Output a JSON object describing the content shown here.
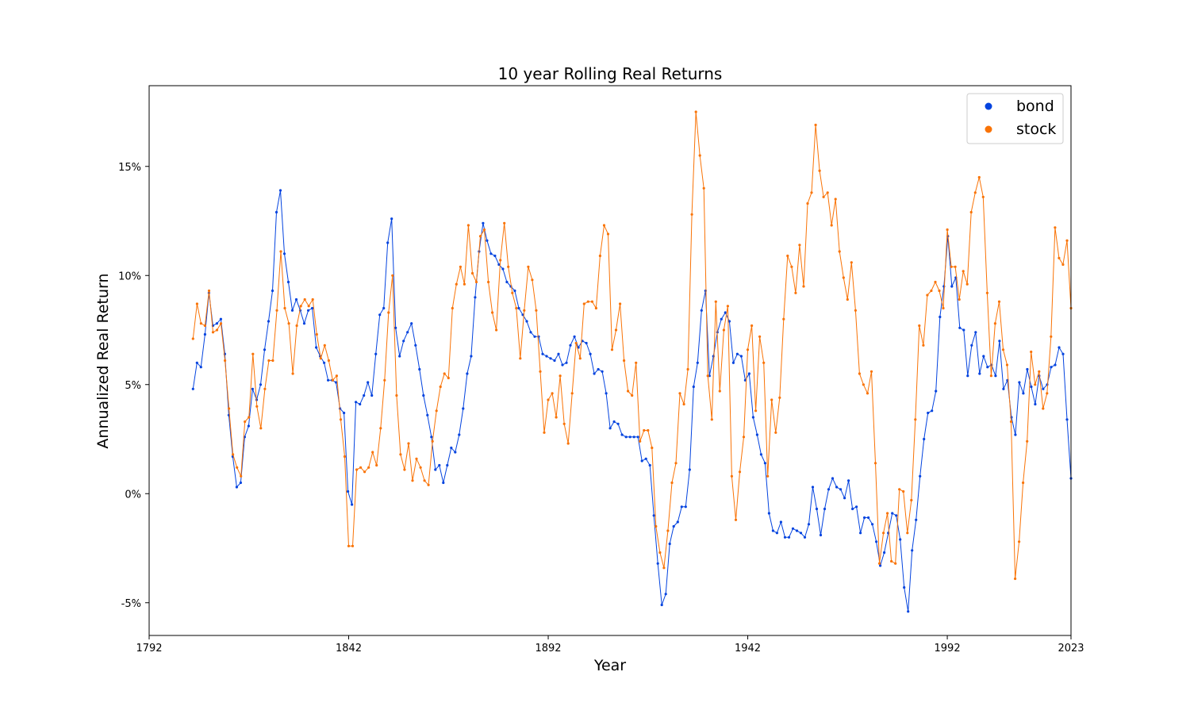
{
  "chart_data": {
    "type": "line",
    "title": "10 year Rolling Real Returns",
    "xlabel": "Year",
    "ylabel": "Annualized Real Return",
    "xlim": [
      1792,
      2023
    ],
    "ylim": [
      -6.5,
      18.7
    ],
    "xticks": [
      1792,
      1842,
      1892,
      1942,
      1992,
      2023
    ],
    "yticks": [
      -5,
      0,
      5,
      10,
      15
    ],
    "ytick_labels": [
      "-5%",
      "0%",
      "5%",
      "10%",
      "15%"
    ],
    "legend": {
      "position": "top-right"
    },
    "grid": false,
    "x_start": 1803,
    "series": [
      {
        "name": "bond",
        "color": "#0343df",
        "values": [
          4.8,
          6.0,
          5.8,
          7.3,
          9.2,
          7.7,
          7.8,
          8.0,
          6.4,
          3.6,
          1.7,
          0.3,
          0.5,
          2.6,
          3.1,
          4.8,
          4.3,
          5.0,
          6.6,
          7.9,
          9.3,
          12.9,
          13.9,
          11.0,
          9.7,
          8.4,
          8.9,
          8.4,
          7.8,
          8.4,
          8.5,
          6.7,
          6.3,
          6.0,
          5.2,
          5.2,
          5.1,
          3.9,
          3.7,
          0.1,
          -0.5,
          4.2,
          4.1,
          4.5,
          5.1,
          4.5,
          6.4,
          8.2,
          8.5,
          11.5,
          12.6,
          7.6,
          6.3,
          7.0,
          7.4,
          7.8,
          6.8,
          5.7,
          4.5,
          3.6,
          2.6,
          1.1,
          1.3,
          0.5,
          1.3,
          2.1,
          1.9,
          2.7,
          3.9,
          5.5,
          6.3,
          9.0,
          11.1,
          12.4,
          11.6,
          11.0,
          10.9,
          10.5,
          10.3,
          9.7,
          9.5,
          9.3,
          8.5,
          8.2,
          7.9,
          7.4,
          7.2,
          7.2,
          6.4,
          6.3,
          6.2,
          6.1,
          6.4,
          5.9,
          6.0,
          6.8,
          7.2,
          6.7,
          7.0,
          6.9,
          6.4,
          5.5,
          5.7,
          5.6,
          4.6,
          3.0,
          3.3,
          3.2,
          2.7,
          2.6,
          2.6,
          2.6,
          2.6,
          1.5,
          1.6,
          1.3,
          -1.0,
          -3.2,
          -5.1,
          -4.6,
          -2.3,
          -1.5,
          -1.3,
          -0.6,
          -0.6,
          1.1,
          4.9,
          6.0,
          8.4,
          9.3,
          5.4,
          6.3,
          7.4,
          8.0,
          8.3,
          7.9,
          6.0,
          6.4,
          6.3,
          5.2,
          5.5,
          3.5,
          2.7,
          1.8,
          1.4,
          -0.9,
          -1.7,
          -1.8,
          -1.3,
          -2.0,
          -2.0,
          -1.6,
          -1.7,
          -1.8,
          -2.0,
          -1.4,
          0.3,
          -0.7,
          -1.9,
          -0.7,
          0.2,
          0.7,
          0.3,
          0.2,
          -0.2,
          0.6,
          -0.7,
          -0.6,
          -1.8,
          -1.1,
          -1.1,
          -1.4,
          -2.2,
          -3.3,
          -2.7,
          -1.8,
          -0.9,
          -1.0,
          -2.1,
          -4.3,
          -5.4,
          -2.6,
          -1.2,
          0.8,
          2.5,
          3.7,
          3.8,
          4.7,
          8.1,
          9.5,
          11.8,
          9.5,
          9.9,
          7.6,
          7.5,
          5.4,
          6.8,
          7.4,
          5.5,
          6.3,
          5.8,
          5.9,
          5.4,
          7.0,
          4.8,
          5.2,
          3.5,
          2.7,
          5.1,
          4.6,
          5.7,
          4.9,
          4.1,
          5.4,
          4.8,
          5.0,
          5.8,
          5.9,
          6.7,
          6.4,
          3.4,
          0.7
        ]
      },
      {
        "name": "stock",
        "color": "#f97306",
        "values": [
          7.1,
          8.7,
          7.8,
          7.7,
          9.3,
          7.4,
          7.5,
          7.8,
          6.1,
          3.9,
          1.8,
          1.2,
          0.8,
          3.3,
          3.5,
          6.4,
          4.0,
          3.0,
          4.8,
          6.1,
          6.1,
          8.4,
          11.1,
          8.5,
          7.8,
          5.5,
          7.7,
          8.6,
          8.9,
          8.6,
          8.9,
          7.3,
          6.2,
          6.8,
          6.1,
          5.2,
          5.4,
          3.4,
          1.7,
          -2.4,
          -2.4,
          1.1,
          1.2,
          1.0,
          1.2,
          1.9,
          1.3,
          3.0,
          5.2,
          8.3,
          10.0,
          4.5,
          1.8,
          1.1,
          2.3,
          0.6,
          1.6,
          1.2,
          0.6,
          0.4,
          2.4,
          3.8,
          4.9,
          5.5,
          5.3,
          8.5,
          9.6,
          10.4,
          9.6,
          12.3,
          10.1,
          9.7,
          11.8,
          12.1,
          9.7,
          8.3,
          7.5,
          10.7,
          12.4,
          10.4,
          9.2,
          8.5,
          6.2,
          8.4,
          10.4,
          9.8,
          8.4,
          5.6,
          2.8,
          4.3,
          4.6,
          3.5,
          5.4,
          3.2,
          2.3,
          4.6,
          6.9,
          6.2,
          8.7,
          8.8,
          8.8,
          8.5,
          10.9,
          12.3,
          11.9,
          6.6,
          7.5,
          8.7,
          6.1,
          4.7,
          4.5,
          6.0,
          2.4,
          2.9,
          2.9,
          2.1,
          -1.5,
          -2.7,
          -3.4,
          -1.7,
          0.5,
          1.4,
          4.6,
          4.1,
          5.7,
          12.8,
          17.5,
          15.5,
          14.0,
          5.4,
          3.4,
          8.8,
          4.7,
          7.5,
          8.6,
          0.8,
          -1.2,
          1.0,
          2.6,
          6.6,
          7.7,
          3.8,
          7.2,
          6.0,
          0.8,
          4.3,
          2.8,
          4.4,
          8.0,
          10.9,
          10.4,
          9.2,
          11.4,
          9.5,
          13.3,
          13.8,
          16.9,
          14.8,
          13.6,
          13.8,
          12.3,
          13.5,
          11.1,
          9.9,
          8.9,
          10.6,
          8.4,
          5.5,
          5.0,
          4.6,
          5.6,
          1.4,
          -3.2,
          -1.8,
          -0.9,
          -3.1,
          -3.2,
          0.2,
          0.1,
          -1.8,
          -0.3,
          3.4,
          7.7,
          6.8,
          9.1,
          9.3,
          9.7,
          9.3,
          8.5,
          12.1,
          10.4,
          10.4,
          8.9,
          10.2,
          9.6,
          12.9,
          13.8,
          14.5,
          13.6,
          9.2,
          5.4,
          7.8,
          8.8,
          6.6,
          5.9,
          3.3,
          -3.9,
          -2.2,
          0.5,
          2.4,
          6.5,
          5.0,
          5.6,
          3.9,
          4.6,
          7.2,
          12.2,
          10.8,
          10.5,
          11.6,
          8.5
        ]
      }
    ]
  }
}
